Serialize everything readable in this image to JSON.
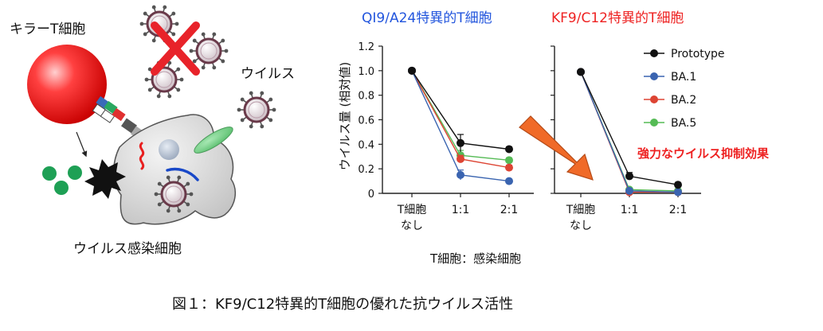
{
  "illustration": {
    "killer_label": "キラーT細胞",
    "virus_label": "ウイルス",
    "infected_label": "ウイルス感染細胞",
    "killer_color": "#e8232a",
    "cross_color": "#e8232a",
    "granule_color": "#22aa55"
  },
  "caption": "図１：KF9/C12特異的T細胞の優れた抗ウイルス活性",
  "arrow_label": "強力なウイルス抑制効果",
  "arrow_color": "#f06a28",
  "chart_data": [
    {
      "type": "line",
      "title": "QI9/A24特異的T細胞",
      "title_color": "#2255dd",
      "ylabel": "ウイルス量 (相対値)",
      "xlabel": "T細胞：感染細胞",
      "ylim": [
        0,
        1.2
      ],
      "yticks": [
        "0",
        "0.2",
        "0.4",
        "0.6",
        "0.8",
        "1.0",
        "1.2"
      ],
      "categories": [
        "T細胞\nなし",
        "1:1",
        "2:1"
      ],
      "series": [
        {
          "name": "Prototype",
          "color": "#111111",
          "values": [
            1.0,
            0.41,
            0.36
          ],
          "err": [
            0,
            0.07,
            0.02
          ]
        },
        {
          "name": "BA.1",
          "color": "#3a64b0",
          "values": [
            1.0,
            0.15,
            0.1
          ],
          "err": [
            0,
            0.04,
            0.01
          ]
        },
        {
          "name": "BA.2",
          "color": "#dd4433",
          "values": [
            1.0,
            0.28,
            0.21
          ],
          "err": [
            0,
            0.03,
            0.02
          ]
        },
        {
          "name": "BA.5",
          "color": "#55bb55",
          "values": [
            1.0,
            0.31,
            0.27
          ],
          "err": [
            0,
            0.04,
            0.02
          ]
        }
      ]
    },
    {
      "type": "line",
      "title": "KF9/C12特異的T細胞",
      "title_color": "#ee2222",
      "ylim": [
        0,
        1.2
      ],
      "categories": [
        "T細胞\nなし",
        "1:1",
        "2:1"
      ],
      "legend_position": "top-right",
      "series": [
        {
          "name": "Prototype",
          "color": "#111111",
          "values": [
            0.99,
            0.14,
            0.07
          ],
          "err": [
            0,
            0.03,
            0.01
          ]
        },
        {
          "name": "BA.1",
          "color": "#3a64b0",
          "values": [
            0.99,
            0.02,
            0.01
          ],
          "err": [
            0,
            0.01,
            0.01
          ]
        },
        {
          "name": "BA.2",
          "color": "#dd4433",
          "values": [
            0.99,
            0.01,
            0.01
          ],
          "err": [
            0,
            0.01,
            0.01
          ]
        },
        {
          "name": "BA.5",
          "color": "#55bb55",
          "values": [
            0.99,
            0.03,
            0.02
          ],
          "err": [
            0,
            0.01,
            0.01
          ]
        }
      ]
    }
  ]
}
